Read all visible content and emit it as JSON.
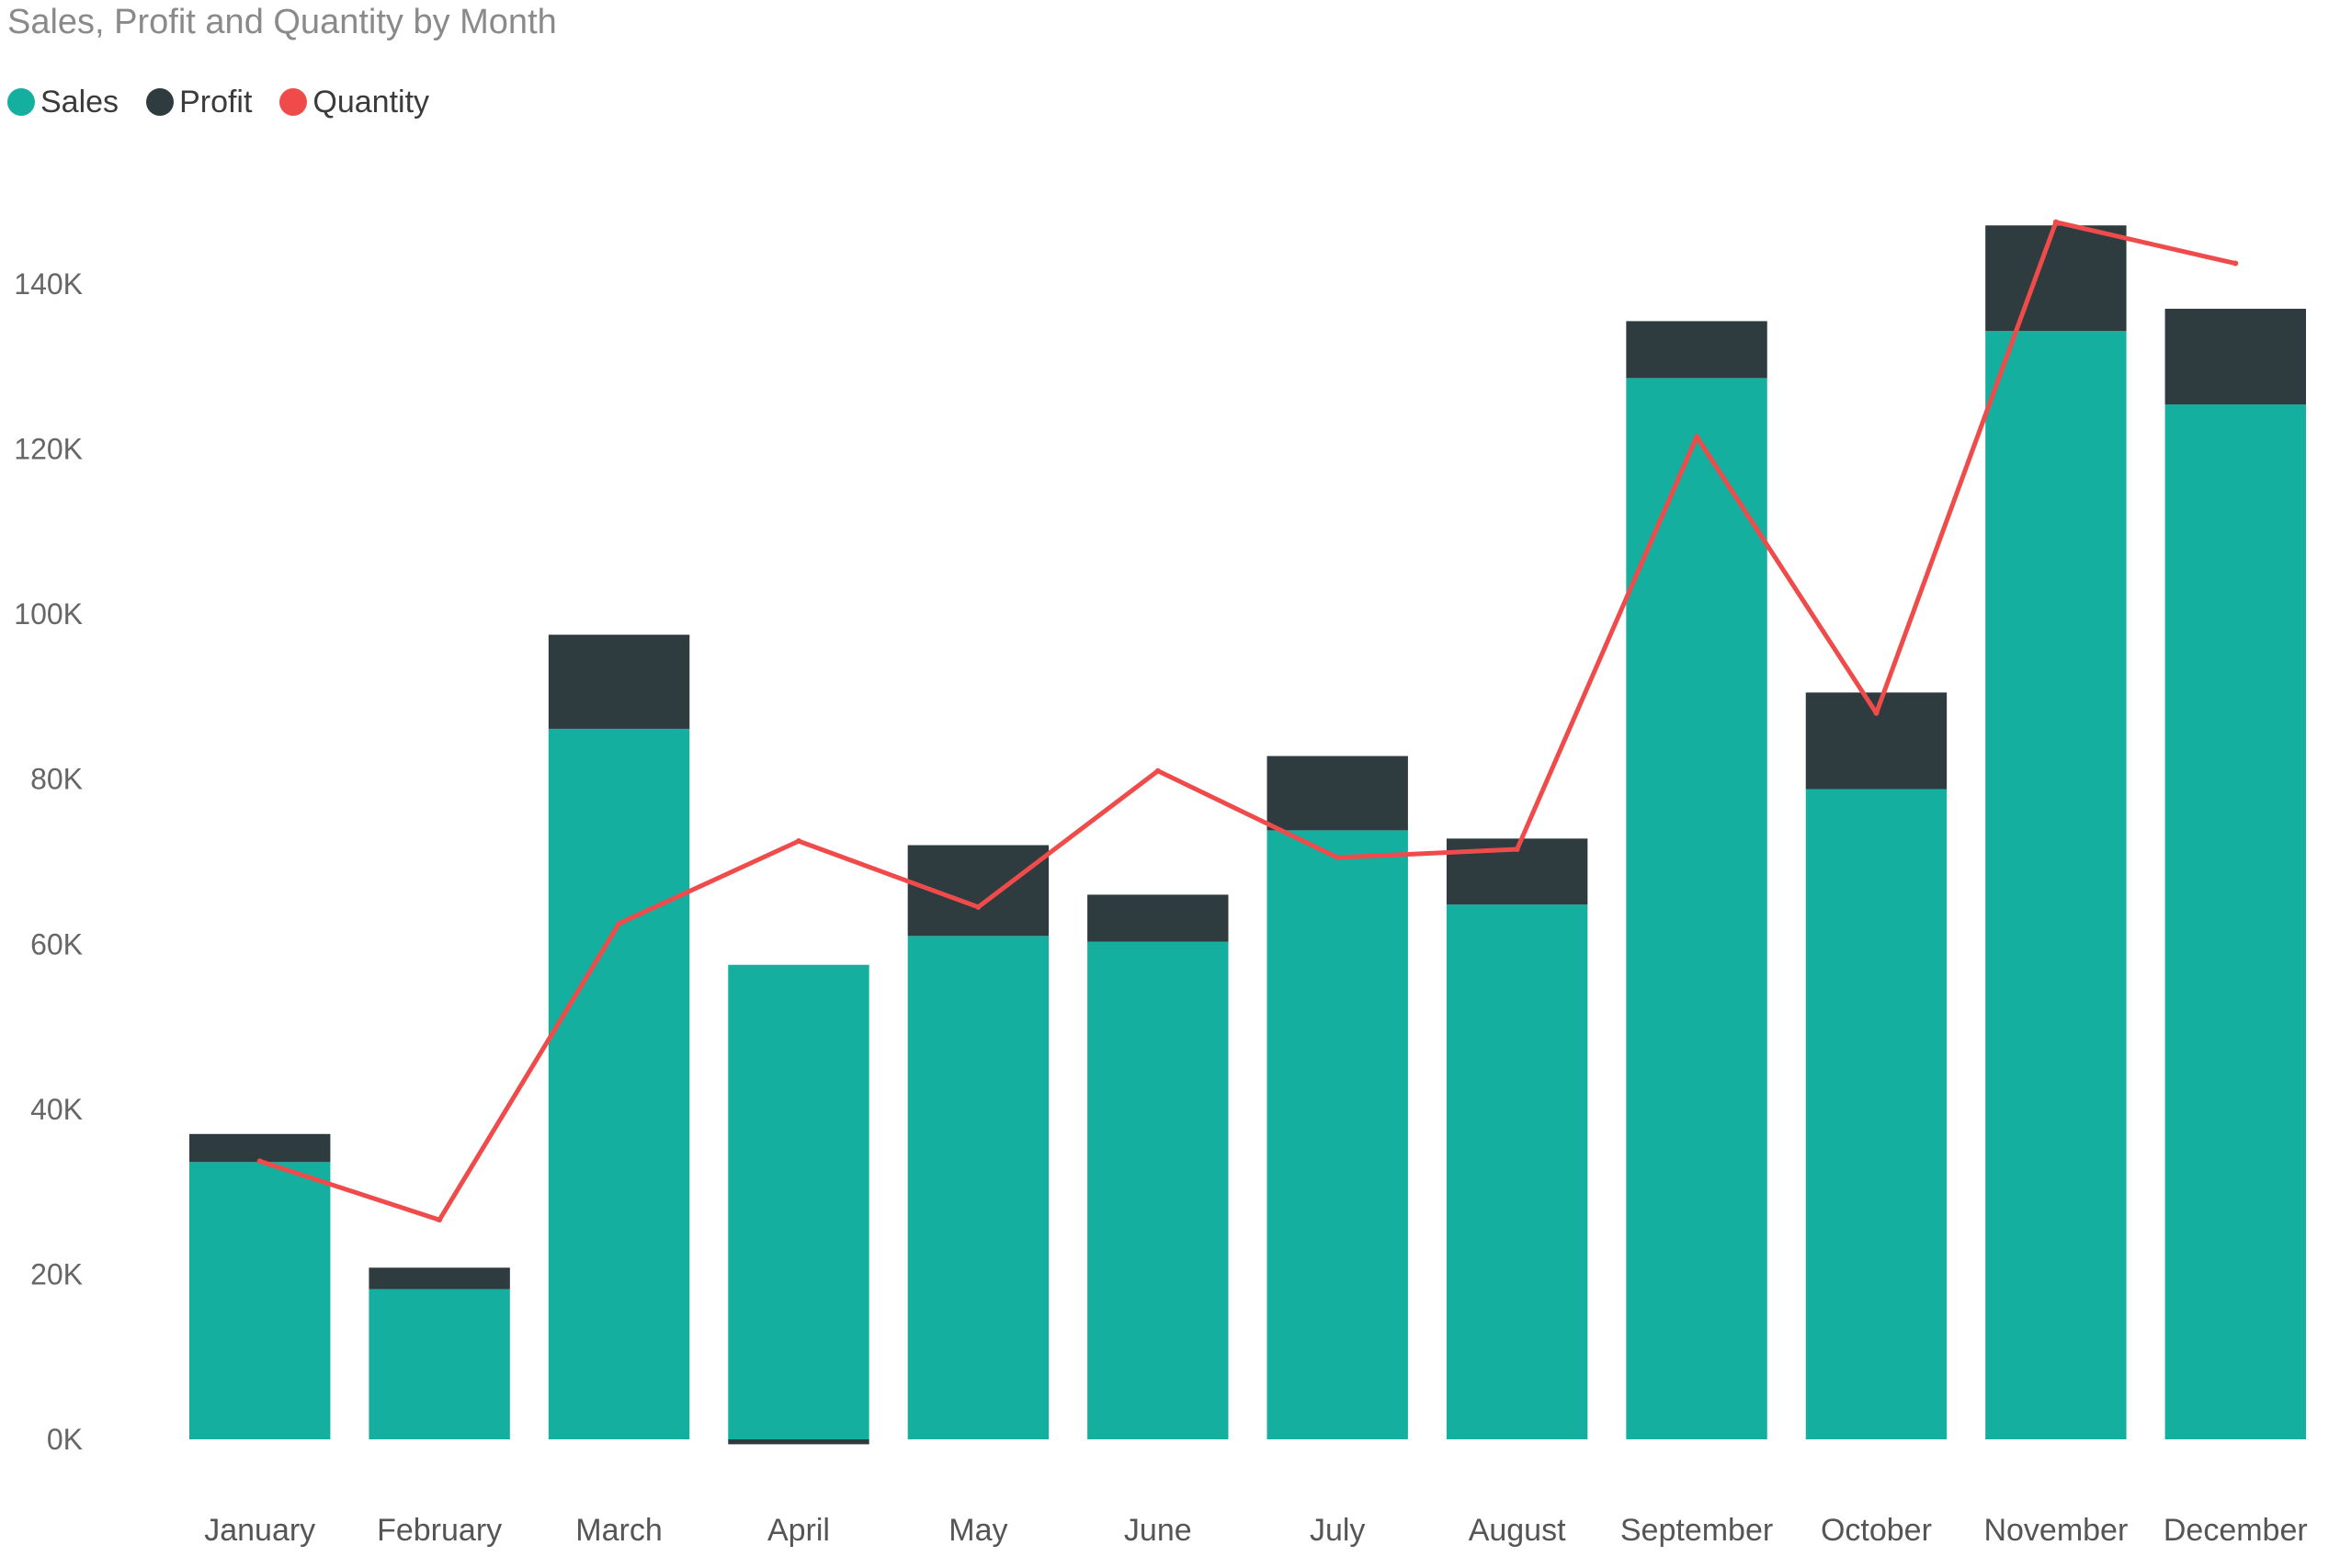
{
  "chart_data": {
    "type": "bar",
    "stacked": true,
    "title": "Sales, Profit and Quantity by Month",
    "categories": [
      "January",
      "February",
      "March",
      "April",
      "May",
      "June",
      "July",
      "August",
      "September",
      "October",
      "November",
      "December"
    ],
    "series": [
      {
        "name": "Sales",
        "kind": "bar",
        "color": "#15AFA0",
        "values": [
          33600,
          18200,
          86100,
          57500,
          61000,
          60300,
          73800,
          64800,
          128600,
          78800,
          134300,
          125400
        ]
      },
      {
        "name": "Profit",
        "kind": "bar",
        "color": "#2E3B3F",
        "values": [
          3400,
          2600,
          11400,
          -600,
          11000,
          5700,
          9000,
          8000,
          6900,
          11700,
          12800,
          11600
        ]
      },
      {
        "name": "Quantity",
        "kind": "line",
        "color": "#F04B4B",
        "values": [
          33700,
          26600,
          62500,
          72500,
          64500,
          81000,
          70500,
          71500,
          121500,
          88000,
          147500,
          142500
        ]
      }
    ],
    "y_tick_labels": [
      "0K",
      "20K",
      "40K",
      "60K",
      "80K",
      "100K",
      "120K",
      "140K"
    ],
    "y_ticks": [
      0,
      20000,
      40000,
      60000,
      80000,
      100000,
      120000,
      140000
    ],
    "ylim": [
      0,
      150000
    ],
    "xlabel": "",
    "ylabel": "",
    "grid": false,
    "legend_position": "top-left"
  }
}
